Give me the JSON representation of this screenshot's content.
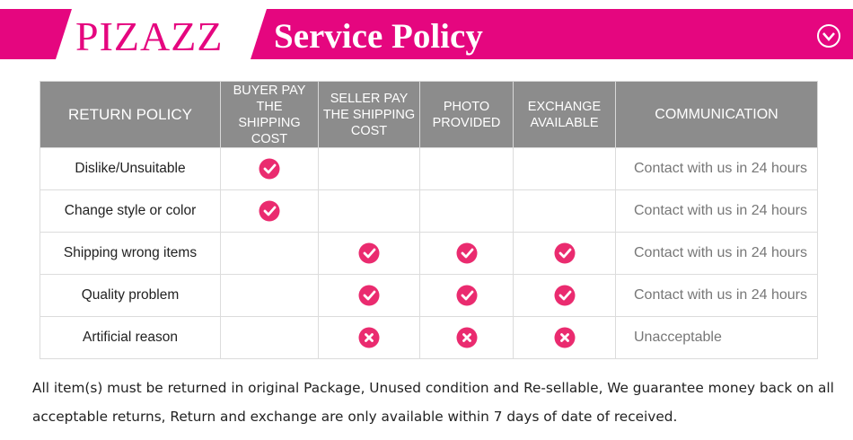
{
  "header": {
    "brand": "PIZAZZ",
    "title": "Service Policy"
  },
  "table": {
    "columns": [
      "RETURN POLICY",
      "BUYER PAY THE SHIPPING COST",
      "SELLER PAY THE SHIPPING COST",
      "PHOTO PROVIDED",
      "EXCHANGE AVAILABLE",
      "COMMUNICATION"
    ],
    "rows": [
      {
        "label": "Dislike/Unsuitable",
        "note": "Contact with us in 24 hours"
      },
      {
        "label": "Change style or color",
        "note": "Contact with us in 24 hours"
      },
      {
        "label": "Shipping wrong items",
        "note": "Contact with us in 24 hours"
      },
      {
        "label": "Quality problem",
        "note": "Contact with us in 24 hours"
      },
      {
        "label": "Artificial reason",
        "note": "Unacceptable"
      }
    ]
  },
  "footer": {
    "text": "All item(s) must be returned in original Package, Unused condition and Re-sellable, We guarantee money back on all acceptable returns, Return and exchange are only available within 7 days of date of received."
  }
}
